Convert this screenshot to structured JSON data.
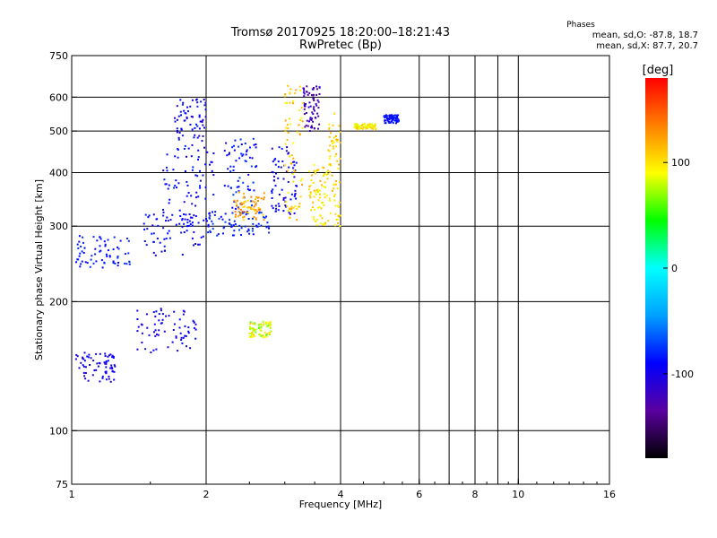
{
  "header": {
    "title": "Tromsø 20170925 18:20:00–18:21:43",
    "subtitle": "RwPretec (Bp)",
    "phase_title": "Phases",
    "phase_o": "mean, sd,O: -87.8, 18.7",
    "phase_x": "mean, sd,X:  87.7, 20.7"
  },
  "chart_data": {
    "type": "scatter",
    "title": "Tromsø 20170925 18:20:00–18:21:43",
    "subtitle": "RwPretec (Bp)",
    "xlabel": "Frequency [MHz]",
    "ylabel": "Stationary phase Virtual Height [km]",
    "x_scale": "log",
    "y_scale": "log",
    "xlim": [
      1,
      16
    ],
    "ylim": [
      75,
      750
    ],
    "x_ticks": [
      1,
      2,
      4,
      6,
      8,
      10,
      16
    ],
    "x_tick_labels": [
      "1",
      "2",
      "4",
      "6",
      "8",
      "10",
      "16"
    ],
    "x_gridlines": [
      2,
      4,
      6,
      7,
      8,
      9,
      10
    ],
    "y_ticks": [
      75,
      100,
      200,
      300,
      400,
      500,
      600,
      750
    ],
    "y_tick_labels": [
      "75",
      "100",
      "200",
      "300",
      "400",
      "500",
      "600",
      "750"
    ],
    "grid": true,
    "colorbar": {
      "label": "[deg]",
      "range": [
        -180,
        180
      ],
      "ticks": [
        100,
        0,
        -100
      ],
      "tick_labels": [
        "100",
        "0",
        "-100"
      ],
      "colors": [
        "#000000",
        "#5a00a0",
        "#0000ff",
        "#00a0ff",
        "#00ffff",
        "#00ff00",
        "#ffff00",
        "#ff8000",
        "#ff0000"
      ]
    },
    "series": [
      {
        "clusters": [
          {
            "x": [
              1.02,
              1.25
            ],
            "y": [
              130,
              152
            ],
            "phase": [
              -85,
              -110
            ]
          },
          {
            "x": [
              1.4,
              1.9
            ],
            "y": [
              152,
              195
            ],
            "phase": [
              -110,
              -85
            ]
          },
          {
            "x": [
              1.02,
              1.35
            ],
            "y": [
              240,
              285
            ],
            "phase": [
              -95,
              -75
            ]
          },
          {
            "x": [
              1.45,
              2.05
            ],
            "y": [
              255,
              320
            ],
            "phase": [
              -100,
              -80
            ]
          },
          {
            "x": [
              1.6,
              2.1
            ],
            "y": [
              300,
              450
            ],
            "phase": [
              -100,
              -80
            ]
          },
          {
            "x": [
              1.7,
              2.0
            ],
            "y": [
              450,
              600
            ],
            "phase": [
              -110,
              -80
            ]
          },
          {
            "x": [
              2.0,
              2.8
            ],
            "y": [
              285,
              325
            ],
            "phase": [
              -90,
              -70
            ]
          },
          {
            "x": [
              2.2,
              2.6
            ],
            "y": [
              320,
              480
            ],
            "phase": [
              -100,
              -70
            ]
          },
          {
            "x": [
              2.8,
              3.2
            ],
            "y": [
              320,
              470
            ],
            "phase": [
              -110,
              -80
            ]
          },
          {
            "x": [
              3.3,
              3.6
            ],
            "y": [
              500,
              640
            ],
            "phase": [
              -140,
              -110
            ]
          }
        ]
      },
      {
        "clusters": [
          {
            "x": [
              2.5,
              2.8
            ],
            "y": [
              165,
              180
            ],
            "phase": [
              60,
              110
            ]
          },
          {
            "x": [
              2.3,
              2.7
            ],
            "y": [
              310,
              360
            ],
            "phase": [
              100,
              140
            ]
          },
          {
            "x": [
              3.0,
              3.3
            ],
            "y": [
              300,
              640
            ],
            "phase": [
              90,
              125
            ]
          },
          {
            "x": [
              3.4,
              3.75
            ],
            "y": [
              300,
              420
            ],
            "phase": [
              80,
              120
            ]
          },
          {
            "x": [
              3.75,
              4.0
            ],
            "y": [
              300,
              550
            ],
            "phase": [
              90,
              120
            ]
          },
          {
            "x": [
              4.3,
              4.8
            ],
            "y": [
              505,
              520
            ],
            "phase": [
              80,
              110
            ]
          },
          {
            "x": [
              5.0,
              5.4
            ],
            "y": [
              520,
              545
            ],
            "phase": [
              -100,
              -80
            ]
          }
        ]
      }
    ]
  }
}
